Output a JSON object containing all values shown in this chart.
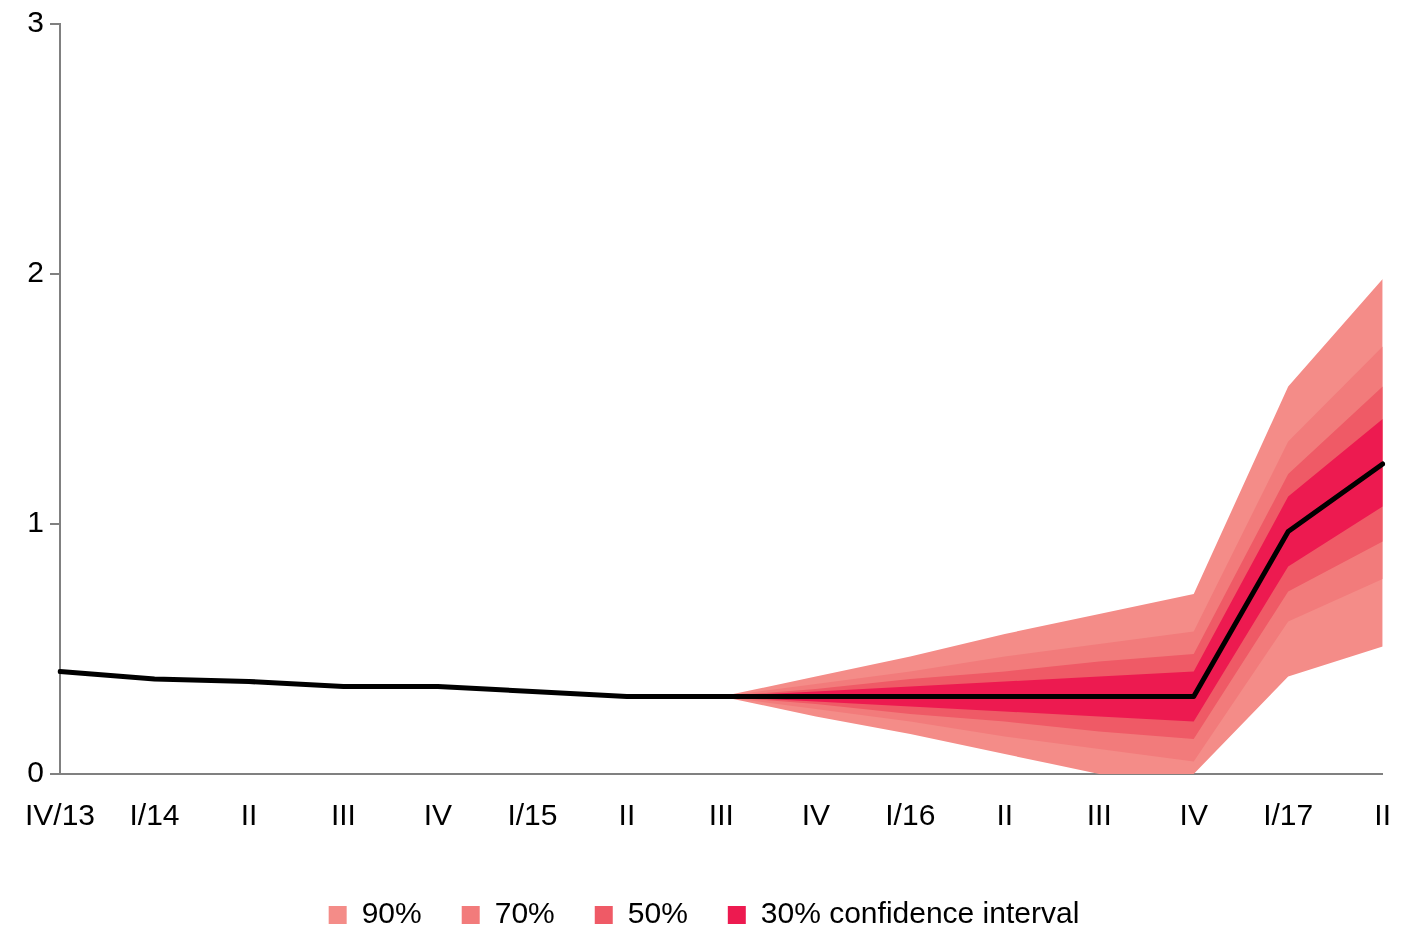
{
  "chart_data": {
    "type": "line",
    "categories": [
      "IV/13",
      "I/14",
      "II",
      "III",
      "IV",
      "I/15",
      "II",
      "III",
      "IV",
      "I/16",
      "II",
      "III",
      "IV",
      "I/17",
      "II"
    ],
    "ylim": [
      0,
      3
    ],
    "yticks": [
      0,
      1,
      2,
      3
    ],
    "grid": false,
    "legend": "bottom",
    "marker": "none",
    "line_style": "solid",
    "series": [
      {
        "type": "area",
        "name": "90%",
        "color": "#f48c88",
        "values": [
          null,
          null,
          null,
          null,
          null,
          null,
          null,
          null,
          null,
          null,
          null,
          null,
          null,
          null,
          null
        ],
        "lower": [
          null,
          null,
          null,
          null,
          null,
          null,
          null,
          0.31,
          0.23,
          0.16,
          0.08,
          0,
          0,
          0.39,
          0.51
        ],
        "upper": [
          null,
          null,
          null,
          null,
          null,
          null,
          null,
          0.31,
          0.39,
          0.47,
          0.56,
          0.64,
          0.72,
          1.55,
          1.98
        ]
      },
      {
        "type": "area",
        "name": "70%",
        "color": "#f27b7b",
        "values": [
          null,
          null,
          null,
          null,
          null,
          null,
          null,
          null,
          null,
          null,
          null,
          null,
          null,
          null,
          null
        ],
        "lower": [
          null,
          null,
          null,
          null,
          null,
          null,
          null,
          0.31,
          0.26,
          0.21,
          0.15,
          0.1,
          0.05,
          0.61,
          0.78
        ],
        "upper": [
          null,
          null,
          null,
          null,
          null,
          null,
          null,
          0.31,
          0.36,
          0.41,
          0.47,
          0.52,
          0.57,
          1.33,
          1.71
        ]
      },
      {
        "type": "area",
        "name": "50%",
        "color": "#ef5a66",
        "values": [
          null,
          null,
          null,
          null,
          null,
          null,
          null,
          null,
          null,
          null,
          null,
          null,
          null,
          null,
          null
        ],
        "lower": [
          null,
          null,
          null,
          null,
          null,
          null,
          null,
          0.31,
          0.28,
          0.24,
          0.21,
          0.17,
          0.14,
          0.73,
          0.93
        ],
        "upper": [
          null,
          null,
          null,
          null,
          null,
          null,
          null,
          0.31,
          0.34,
          0.38,
          0.41,
          0.45,
          0.48,
          1.2,
          1.55
        ]
      },
      {
        "type": "area",
        "name": "30% confidence interval",
        "color": "#ed1a50",
        "values": [
          null,
          null,
          null,
          null,
          null,
          null,
          null,
          null,
          null,
          null,
          null,
          null,
          null,
          null,
          null
        ],
        "lower": [
          null,
          null,
          null,
          null,
          null,
          null,
          null,
          0.31,
          0.29,
          0.27,
          0.25,
          0.23,
          0.21,
          0.83,
          1.07
        ],
        "upper": [
          null,
          null,
          null,
          null,
          null,
          null,
          null,
          0.31,
          0.33,
          0.35,
          0.37,
          0.39,
          0.41,
          1.11,
          1.42
        ]
      },
      {
        "type": "line",
        "color": "#000000",
        "values": [
          0.41,
          0.38,
          0.37,
          0.35,
          0.35,
          0.33,
          0.31,
          0.31,
          0.31,
          0.31,
          0.31,
          0.31,
          0.31,
          0.97,
          1.24
        ]
      }
    ]
  }
}
